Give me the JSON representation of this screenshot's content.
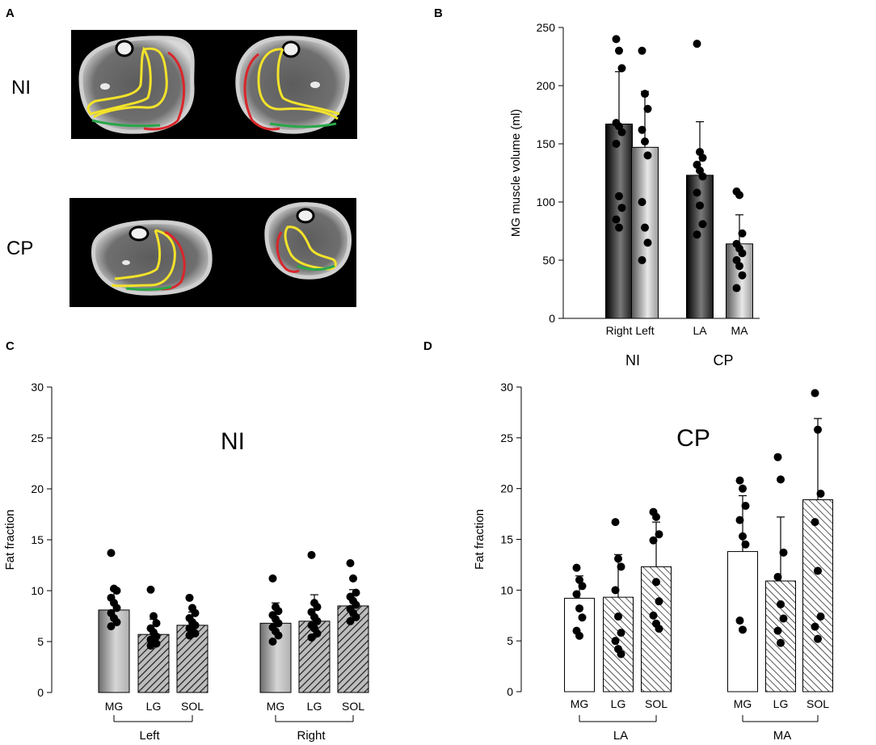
{
  "panels": {
    "a": "A",
    "b": "B",
    "c": "C",
    "d": "D"
  },
  "panel_a": {
    "row_labels": [
      "NI",
      "CP"
    ],
    "outline_colors": {
      "red": "#d9262b",
      "yellow": "#f2e22a",
      "green": "#29a74a"
    },
    "image_bg": "#000000"
  },
  "colors": {
    "dark_bar_edge": "#000000",
    "dark_bar_mid": "#6a6a6a",
    "light_bar_edge": "#5a5a5a",
    "light_bar_mid": "#e6e6e6",
    "dot": "#000000"
  },
  "chart_data": [
    {
      "id": "B",
      "type": "bar",
      "ylabel": "MG muscle volume (ml)",
      "ylim": [
        0,
        250
      ],
      "yticks": [
        0,
        50,
        100,
        150,
        200,
        250
      ],
      "groups": [
        {
          "name": "NI",
          "bars": [
            {
              "label": "Right",
              "value": 167,
              "err": 45,
              "fill": "dark",
              "points": [
                240,
                230,
                215,
                168,
                165,
                160,
                150,
                105,
                95,
                85,
                78
              ]
            },
            {
              "label": "Left",
              "value": 147,
              "err": 48,
              "fill": "light",
              "points": [
                230,
                193,
                180,
                162,
                152,
                140,
                100,
                78,
                65,
                50
              ]
            }
          ]
        },
        {
          "name": "CP",
          "bars": [
            {
              "label": "LA",
              "value": 123,
              "err": 46,
              "fill": "dark",
              "points": [
                236,
                143,
                138,
                132,
                127,
                122,
                108,
                97,
                81,
                72
              ]
            },
            {
              "label": "MA",
              "value": 64,
              "err": 25,
              "fill": "light",
              "points": [
                109,
                106,
                73,
                64,
                60,
                56,
                50,
                45,
                37,
                26
              ]
            }
          ]
        }
      ]
    },
    {
      "id": "C",
      "type": "bar",
      "title": "NI",
      "ylabel": "Fat fraction",
      "ylim": [
        0,
        30
      ],
      "yticks": [
        0,
        5,
        10,
        15,
        20,
        25,
        30
      ],
      "groups": [
        {
          "name": "Left",
          "bars": [
            {
              "label": "MG",
              "value": 8.1,
              "err": 2.0,
              "fill": "solidgrey",
              "points": [
                13.7,
                10.2,
                10.0,
                9.3,
                8.8,
                8.3,
                7.8,
                7.3,
                6.9,
                6.5
              ]
            },
            {
              "label": "LG",
              "value": 5.7,
              "err": 1.5,
              "fill": "hatch",
              "points": [
                10.1,
                7.5,
                6.8,
                6.3,
                5.9,
                5.5,
                5.2,
                5.0,
                4.8,
                4.6
              ]
            },
            {
              "label": "SOL",
              "value": 6.6,
              "err": 1.3,
              "fill": "hatch",
              "points": [
                9.3,
                8.3,
                7.8,
                7.3,
                6.9,
                6.6,
                6.3,
                6.0,
                5.8,
                5.6
              ]
            }
          ]
        },
        {
          "name": "Right",
          "bars": [
            {
              "label": "MG",
              "value": 6.8,
              "err": 2.0,
              "fill": "solidgrey",
              "points": [
                11.2,
                8.4,
                8.0,
                7.6,
                7.2,
                6.8,
                6.4,
                6.0,
                5.6,
                5.0
              ]
            },
            {
              "label": "LG",
              "value": 7.0,
              "err": 2.6,
              "fill": "hatch",
              "points": [
                13.5,
                8.8,
                8.4,
                7.9,
                7.4,
                7.0,
                6.6,
                6.3,
                5.8,
                5.4
              ]
            },
            {
              "label": "SOL",
              "value": 8.5,
              "err": 1.6,
              "fill": "hatch",
              "points": [
                12.7,
                11.2,
                9.8,
                9.4,
                9.0,
                8.6,
                8.2,
                7.8,
                7.4,
                7.0
              ]
            }
          ]
        }
      ]
    },
    {
      "id": "D",
      "type": "bar",
      "title": "CP",
      "ylabel": "Fat fraction",
      "ylim": [
        0,
        30
      ],
      "yticks": [
        0,
        5,
        10,
        15,
        20,
        25,
        30
      ],
      "groups": [
        {
          "name": "LA",
          "bars": [
            {
              "label": "MG",
              "value": 9.2,
              "err": 2.2,
              "fill": "white",
              "points": [
                12.2,
                11.0,
                10.4,
                9.6,
                8.2,
                7.3,
                6.0,
                5.5
              ]
            },
            {
              "label": "LG",
              "value": 9.3,
              "err": 4.2,
              "fill": "hatch",
              "points": [
                16.7,
                13.1,
                12.3,
                10.0,
                7.4,
                5.8,
                5.0,
                4.2,
                3.7
              ]
            },
            {
              "label": "SOL",
              "value": 12.3,
              "err": 4.4,
              "fill": "hatch",
              "points": [
                17.7,
                17.2,
                15.5,
                14.9,
                10.8,
                8.9,
                7.5,
                6.7,
                6.2
              ]
            }
          ]
        },
        {
          "name": "MA",
          "bars": [
            {
              "label": "MG",
              "value": 13.8,
              "err": 5.5,
              "fill": "white",
              "points": [
                20.8,
                20.0,
                18.3,
                16.9,
                15.3,
                14.5,
                7.0,
                6.1
              ]
            },
            {
              "label": "LG",
              "value": 10.9,
              "err": 6.3,
              "fill": "hatch",
              "points": [
                23.1,
                20.9,
                13.7,
                11.3,
                8.6,
                7.2,
                6.0,
                4.8
              ]
            },
            {
              "label": "SOL",
              "value": 18.9,
              "err": 8.0,
              "fill": "hatch",
              "points": [
                29.4,
                25.8,
                19.5,
                16.7,
                11.9,
                7.4,
                6.4,
                5.2
              ]
            }
          ]
        }
      ]
    }
  ]
}
